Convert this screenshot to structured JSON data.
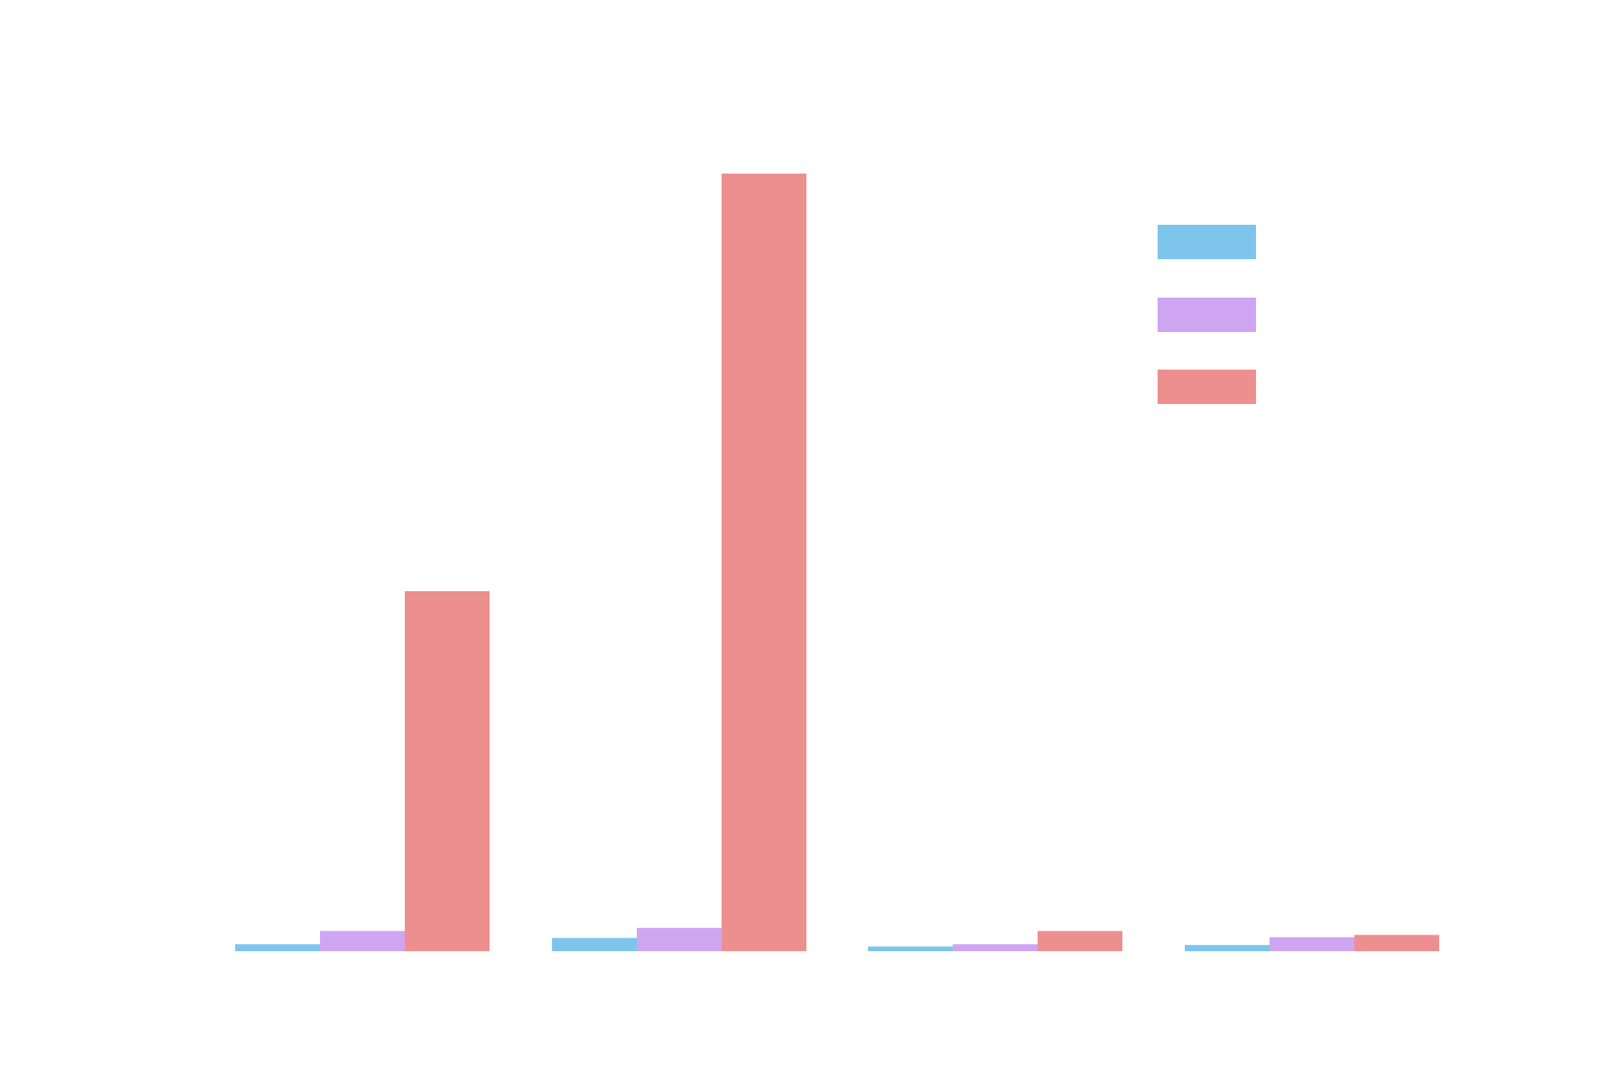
{
  "chart_data": {
    "type": "bar",
    "title": "",
    "xlabel": "",
    "ylabel": "",
    "categories": [
      "",
      "",
      "",
      ""
    ],
    "ylim": [
      0,
      100
    ],
    "grid": false,
    "legend_position": "top-right",
    "series": [
      {
        "color": "#7DC5EA",
        "values": [
          0.9,
          1.7,
          0.6,
          0.8
        ]
      },
      {
        "color": "#CFA5F1",
        "values": [
          2.6,
          3.0,
          0.9,
          1.8
        ]
      },
      {
        "color": "#EE8F8F",
        "values": [
          46.3,
          100,
          2.6,
          2.1
        ]
      }
    ]
  }
}
